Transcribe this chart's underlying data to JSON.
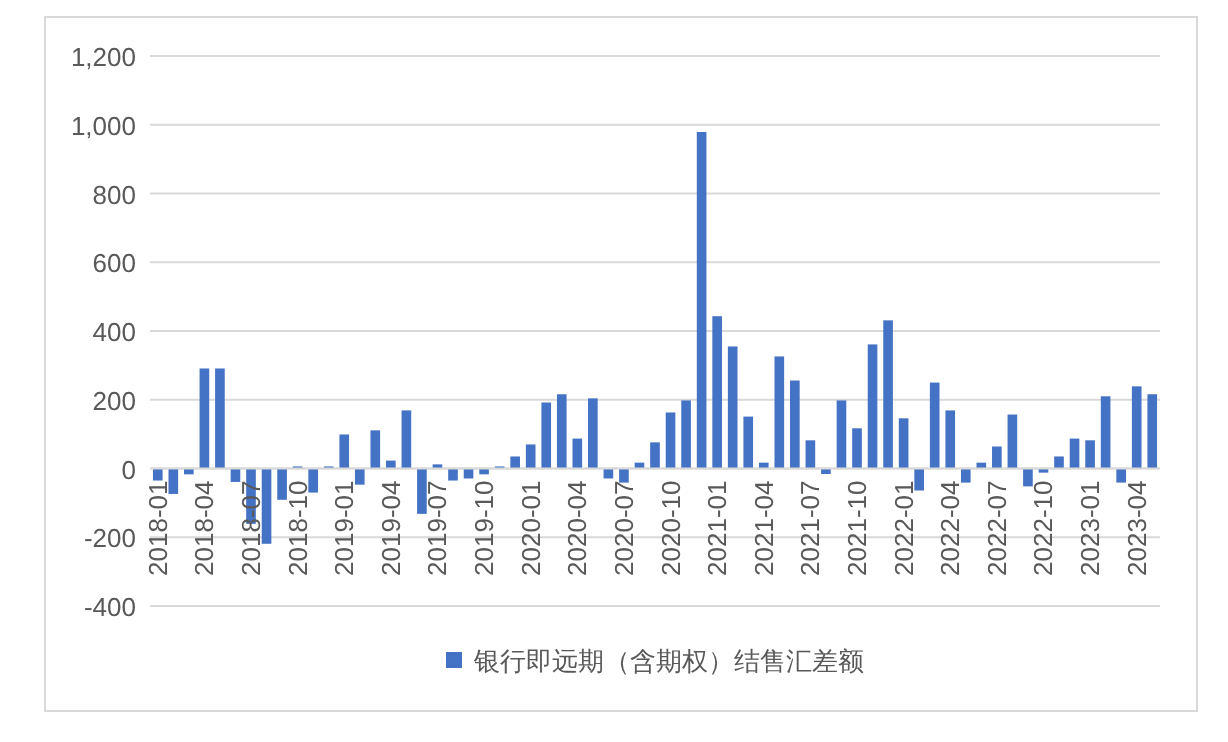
{
  "chart_data": {
    "type": "bar",
    "categories": [
      "2018-01",
      null,
      null,
      "2018-04",
      null,
      null,
      "2018-07",
      null,
      null,
      "2018-10",
      null,
      null,
      "2019-01",
      null,
      null,
      "2019-04",
      null,
      null,
      "2019-07",
      null,
      null,
      "2019-10",
      null,
      null,
      "2020-01",
      null,
      null,
      "2020-04",
      null,
      null,
      "2020-07",
      null,
      null,
      "2020-10",
      null,
      null,
      "2021-01",
      null,
      null,
      "2021-04",
      null,
      null,
      "2021-07",
      null,
      null,
      "2021-10",
      null,
      null,
      "2022-01",
      null,
      null,
      "2022-04",
      null,
      null,
      "2022-07",
      null,
      null,
      "2022-10",
      null,
      null,
      "2023-01",
      null,
      null,
      "2023-04",
      null
    ],
    "series": [
      {
        "name": "银行即远期（含期权）结售汇差额",
        "color": "#4472c4",
        "values": [
          -35,
          -74,
          -17,
          291,
          291,
          -39,
          -161,
          -219,
          -91,
          6,
          -70,
          6,
          99,
          -47,
          111,
          23,
          169,
          -132,
          12,
          -35,
          -29,
          -17,
          6,
          35,
          70,
          192,
          216,
          87,
          204,
          -29,
          -41,
          17,
          76,
          163,
          198,
          979,
          443,
          355,
          151,
          17,
          326,
          256,
          82,
          -16,
          198,
          117,
          361,
          431,
          146,
          -64,
          250,
          169,
          -41,
          17,
          64,
          157,
          -52,
          -12,
          35,
          87,
          82,
          210,
          -41,
          239,
          216
        ]
      }
    ],
    "ylim": [
      -400,
      1200
    ],
    "yticks": [
      -400,
      -200,
      0,
      200,
      400,
      600,
      800,
      {
        "value": 1000,
        "label": "1,000"
      },
      {
        "value": 1200,
        "label": "1,200"
      }
    ],
    "grid": "y",
    "legend": "bottom"
  }
}
